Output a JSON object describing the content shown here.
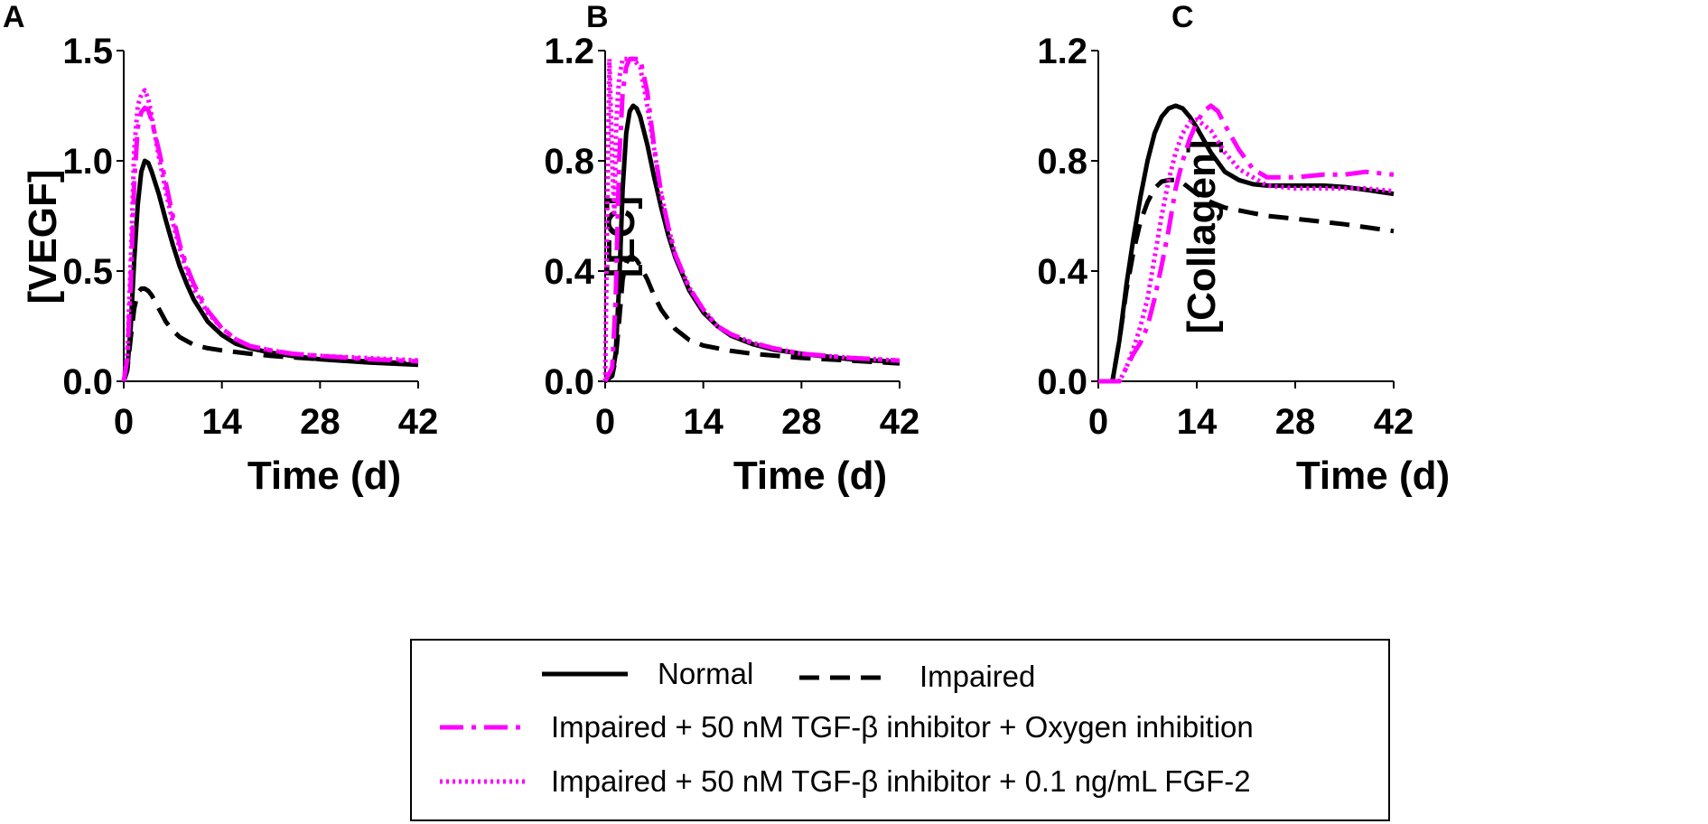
{
  "chart_data": [
    {
      "type": "line",
      "panel": "A",
      "xlabel": "Time (d)",
      "ylabel": "[VEGF]",
      "xlim": [
        0,
        42
      ],
      "ylim": [
        0,
        1.5
      ],
      "xticks": [
        "0",
        "14",
        "28",
        "42"
      ],
      "yticks": [
        "0.0",
        "0.5",
        "1.0",
        "1.5"
      ],
      "series": [
        {
          "name": "Normal",
          "x": [
            0,
            0.5,
            1,
            1.5,
            2,
            2.5,
            3,
            3.5,
            4,
            5,
            6,
            7,
            8,
            9,
            10,
            12,
            14,
            16,
            18,
            21,
            24,
            28,
            35,
            42
          ],
          "y": [
            0,
            0.05,
            0.25,
            0.55,
            0.8,
            0.95,
            1.0,
            0.99,
            0.95,
            0.85,
            0.73,
            0.62,
            0.52,
            0.44,
            0.37,
            0.27,
            0.21,
            0.17,
            0.15,
            0.13,
            0.115,
            0.1,
            0.085,
            0.075
          ]
        },
        {
          "name": "Impaired",
          "x": [
            0,
            0.5,
            1,
            1.5,
            2,
            2.5,
            3,
            3.5,
            4,
            5,
            6,
            7,
            8,
            10,
            12,
            14,
            18,
            21,
            28,
            35,
            42
          ],
          "y": [
            0,
            0.05,
            0.2,
            0.33,
            0.4,
            0.42,
            0.42,
            0.41,
            0.39,
            0.33,
            0.27,
            0.23,
            0.2,
            0.165,
            0.15,
            0.14,
            0.125,
            0.115,
            0.1,
            0.09,
            0.08
          ]
        },
        {
          "name": "Impaired + 50 nM TGF-β inhibitor + Oxygen inhibition",
          "x": [
            0,
            0.5,
            1,
            1.5,
            2,
            2.5,
            3,
            3.5,
            4,
            5,
            6,
            7,
            8,
            9,
            10,
            12,
            14,
            16,
            18,
            21,
            24,
            28,
            35,
            42
          ],
          "y": [
            0,
            0.1,
            0.45,
            0.9,
            1.15,
            1.22,
            1.24,
            1.23,
            1.18,
            1.05,
            0.9,
            0.75,
            0.62,
            0.52,
            0.44,
            0.32,
            0.24,
            0.19,
            0.16,
            0.14,
            0.125,
            0.115,
            0.1,
            0.09
          ]
        },
        {
          "name": "Impaired + 50 nM TGF-β inhibitor + 0.1 ng/mL FGF-2",
          "x": [
            0,
            0.5,
            1,
            1.5,
            2,
            2.5,
            3,
            3.5,
            4,
            5,
            6,
            7,
            8,
            9,
            10,
            12,
            14,
            16,
            18,
            21,
            24,
            28,
            35,
            42
          ],
          "y": [
            0,
            0.12,
            0.55,
            1.05,
            1.25,
            1.3,
            1.32,
            1.28,
            1.2,
            1.02,
            0.86,
            0.72,
            0.6,
            0.5,
            0.42,
            0.31,
            0.24,
            0.19,
            0.16,
            0.14,
            0.125,
            0.115,
            0.105,
            0.095
          ]
        }
      ]
    },
    {
      "type": "line",
      "panel": "B",
      "xlabel": "Time (d)",
      "ylabel": "[EC]",
      "xlim": [
        0,
        42
      ],
      "ylim": [
        0,
        1.2
      ],
      "xticks": [
        "0",
        "14",
        "28",
        "42"
      ],
      "yticks": [
        "0.0",
        "0.4",
        "0.8",
        "1.2"
      ],
      "series": [
        {
          "name": "Normal",
          "x": [
            0,
            1,
            1.5,
            2,
            2.5,
            3,
            3.5,
            4,
            4.5,
            5,
            6,
            7,
            8,
            9,
            10,
            12,
            14,
            16,
            18,
            21,
            24,
            28,
            35,
            42
          ],
          "y": [
            0,
            0.02,
            0.1,
            0.35,
            0.7,
            0.9,
            0.98,
            1.0,
            0.99,
            0.96,
            0.86,
            0.74,
            0.63,
            0.53,
            0.45,
            0.33,
            0.25,
            0.2,
            0.165,
            0.135,
            0.115,
            0.1,
            0.08,
            0.07
          ]
        },
        {
          "name": "Impaired",
          "x": [
            0,
            1,
            1.5,
            2,
            2.5,
            3,
            3.5,
            4,
            4.5,
            5,
            6,
            7,
            8,
            10,
            12,
            14,
            18,
            21,
            28,
            35,
            42
          ],
          "y": [
            0,
            0.02,
            0.08,
            0.22,
            0.37,
            0.43,
            0.45,
            0.45,
            0.44,
            0.42,
            0.37,
            0.31,
            0.26,
            0.19,
            0.15,
            0.13,
            0.11,
            0.1,
            0.085,
            0.075,
            0.065
          ]
        },
        {
          "name": "Impaired + 50 nM TGF-β inhibitor + Oxygen inhibition",
          "x": [
            0,
            1,
            1.5,
            2,
            2.5,
            3,
            3.5,
            4,
            5,
            6,
            7,
            8,
            9,
            10,
            12,
            14,
            16,
            18,
            21,
            24,
            28,
            35,
            42
          ],
          "y": [
            0,
            0.05,
            0.3,
            0.8,
            1.05,
            1.14,
            1.17,
            1.17,
            1.17,
            1.05,
            0.85,
            0.68,
            0.56,
            0.46,
            0.34,
            0.26,
            0.2,
            0.17,
            0.14,
            0.12,
            0.1,
            0.085,
            0.075
          ]
        },
        {
          "name": "Impaired + 50 nM TGF-β inhibitor + 0.1 ng/mL FGF-2",
          "x": [
            0,
            0.3,
            0.6,
            1,
            1.3,
            1.6,
            2,
            2.5,
            3,
            3.5,
            4,
            5,
            6,
            7,
            8,
            9,
            10,
            12,
            14,
            16,
            18,
            21,
            24,
            28,
            35,
            42
          ],
          "y": [
            0,
            0.6,
            1.17,
            0.8,
            0.6,
            0.95,
            1.1,
            1.17,
            1.17,
            1.17,
            1.17,
            1.14,
            1.0,
            0.84,
            0.68,
            0.56,
            0.46,
            0.34,
            0.26,
            0.2,
            0.17,
            0.14,
            0.12,
            0.1,
            0.085,
            0.075
          ]
        }
      ]
    },
    {
      "type": "line",
      "panel": "C",
      "xlabel": "Time (d)",
      "ylabel": "[Collagen]",
      "xlim": [
        0,
        42
      ],
      "ylim": [
        0,
        1.2
      ],
      "xticks": [
        "0",
        "14",
        "28",
        "42"
      ],
      "yticks": [
        "0.0",
        "0.4",
        "0.8",
        "1.2"
      ],
      "series": [
        {
          "name": "Normal",
          "x": [
            0,
            2,
            3,
            4,
            5,
            6,
            7,
            8,
            9,
            10,
            11,
            12,
            13,
            14,
            16,
            18,
            20,
            22,
            24,
            28,
            32,
            35,
            38,
            42
          ],
          "y": [
            0,
            0,
            0.15,
            0.35,
            0.52,
            0.67,
            0.8,
            0.9,
            0.96,
            0.99,
            1.0,
            0.99,
            0.96,
            0.92,
            0.83,
            0.76,
            0.73,
            0.715,
            0.71,
            0.71,
            0.71,
            0.705,
            0.695,
            0.68
          ]
        },
        {
          "name": "Impaired",
          "x": [
            0,
            2,
            3,
            4,
            5,
            6,
            7,
            8,
            9,
            10,
            11,
            12,
            14,
            16,
            18,
            21,
            24,
            28,
            35,
            42
          ],
          "y": [
            0,
            0,
            0.15,
            0.33,
            0.47,
            0.58,
            0.65,
            0.7,
            0.725,
            0.73,
            0.73,
            0.72,
            0.68,
            0.65,
            0.63,
            0.615,
            0.6,
            0.59,
            0.57,
            0.545
          ]
        },
        {
          "name": "Impaired + 50 nM TGF-β inhibitor + Oxygen inhibition",
          "x": [
            0,
            3,
            4,
            5,
            6,
            7,
            8,
            9,
            10,
            11,
            12,
            13,
            14,
            15,
            16,
            17,
            18,
            20,
            22,
            24,
            28,
            32,
            35,
            38,
            42
          ],
          "y": [
            0,
            0,
            0.05,
            0.1,
            0.14,
            0.2,
            0.3,
            0.42,
            0.55,
            0.7,
            0.8,
            0.88,
            0.94,
            0.98,
            1.0,
            0.98,
            0.93,
            0.84,
            0.77,
            0.74,
            0.74,
            0.75,
            0.75,
            0.76,
            0.75
          ]
        },
        {
          "name": "Impaired + 50 nM TGF-β inhibitor + 0.1 ng/mL FGF-2",
          "x": [
            0,
            3,
            4,
            5,
            6,
            7,
            8,
            9,
            10,
            11,
            12,
            13,
            14,
            16,
            18,
            20,
            22,
            24,
            28,
            32,
            35,
            38,
            42
          ],
          "y": [
            0,
            0,
            0.05,
            0.12,
            0.2,
            0.3,
            0.45,
            0.6,
            0.73,
            0.83,
            0.9,
            0.94,
            0.95,
            0.91,
            0.83,
            0.77,
            0.74,
            0.71,
            0.7,
            0.7,
            0.7,
            0.7,
            0.69
          ]
        }
      ]
    }
  ],
  "legend": {
    "entries": [
      {
        "label": "Normal",
        "color": "#000000",
        "style": "solid"
      },
      {
        "label": "Impaired",
        "color": "#000000",
        "style": "dashed"
      },
      {
        "label": "Impaired + 50 nM TGF-β inhibitor + Oxygen inhibition",
        "color": "#ff00ff",
        "style": "dash-dot"
      },
      {
        "label": "Impaired + 50 nM TGF-β inhibitor + 0.1 ng/mL FGF-2",
        "color": "#ff00ff",
        "style": "dotted"
      }
    ]
  }
}
